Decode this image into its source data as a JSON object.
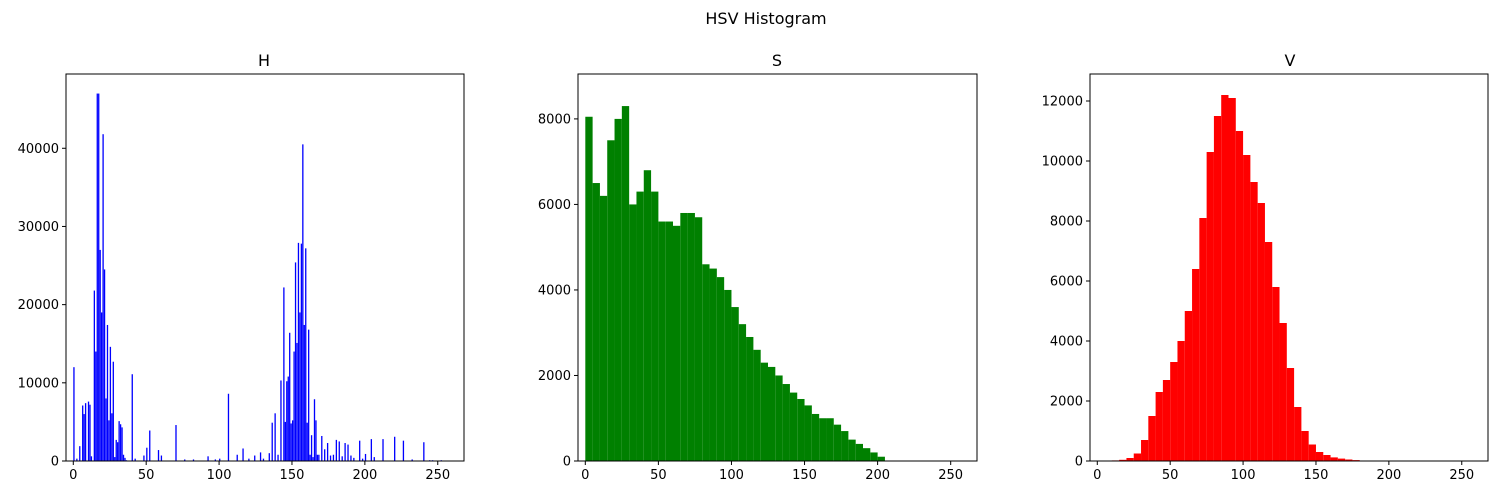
{
  "figure": {
    "suptitle": "HSV Histogram"
  },
  "chart_data": [
    {
      "type": "bar",
      "title": "H",
      "color": "#0000ff",
      "xlim": [
        -5,
        268
      ],
      "ylim": [
        0,
        49500
      ],
      "xticks": [
        0,
        50,
        100,
        150,
        200,
        250
      ],
      "yticks": [
        0,
        10000,
        20000,
        30000,
        40000
      ],
      "x": [
        0,
        2,
        4,
        6,
        7,
        8,
        10,
        11,
        12,
        14,
        15,
        16,
        17,
        18,
        19,
        20,
        21,
        22,
        23,
        24,
        25,
        26,
        27,
        28,
        29,
        30,
        31,
        32,
        33,
        34,
        35,
        36,
        40,
        42,
        48,
        50,
        52,
        58,
        60,
        70,
        76,
        82,
        92,
        97,
        100,
        106,
        112,
        116,
        120,
        124,
        128,
        130,
        134,
        136,
        138,
        140,
        142,
        144,
        145,
        146,
        147,
        148,
        149,
        150,
        151,
        152,
        153,
        154,
        155,
        156,
        157,
        158,
        159,
        160,
        161,
        162,
        163,
        164,
        165,
        166,
        167,
        168,
        170,
        172,
        174,
        176,
        178,
        180,
        182,
        184,
        186,
        188,
        190,
        192,
        196,
        198,
        200,
        204,
        206,
        212,
        220,
        226,
        232,
        240,
        244,
        246,
        252
      ],
      "values": [
        12000,
        300,
        1900,
        7100,
        6000,
        7400,
        7600,
        7200,
        600,
        21800,
        14000,
        47000,
        47000,
        27000,
        19000,
        41800,
        24500,
        8000,
        17400,
        5200,
        14600,
        6100,
        12700,
        500,
        2700,
        2400,
        5100,
        4700,
        4300,
        800,
        400,
        100,
        11100,
        300,
        700,
        1700,
        3900,
        1400,
        700,
        4600,
        200,
        200,
        600,
        200,
        300,
        8600,
        800,
        1600,
        300,
        700,
        1100,
        300,
        1000,
        4900,
        6100,
        800,
        10300,
        22200,
        5000,
        10200,
        10800,
        16400,
        4800,
        5200,
        14000,
        25400,
        15100,
        27900,
        19000,
        27800,
        40500,
        17400,
        27200,
        4900,
        16800,
        800,
        3300,
        500,
        7900,
        5200,
        800,
        800,
        3200,
        1500,
        2300,
        700,
        800,
        2700,
        2500,
        600,
        2300,
        2100,
        700,
        400,
        2600,
        300,
        900,
        2800,
        500,
        2800,
        3100,
        2600,
        200,
        2400,
        100,
        100,
        100
      ],
      "xlabel": "",
      "ylabel": ""
    },
    {
      "type": "bar",
      "title": "S",
      "color": "#008000",
      "xlim": [
        -5,
        268
      ],
      "ylim": [
        0,
        9050
      ],
      "xticks": [
        0,
        50,
        100,
        150,
        200,
        250
      ],
      "yticks": [
        0,
        2000,
        4000,
        6000,
        8000
      ],
      "x": [
        0,
        5,
        10,
        15,
        20,
        25,
        30,
        35,
        40,
        45,
        50,
        55,
        60,
        65,
        70,
        75,
        80,
        85,
        90,
        95,
        100,
        105,
        110,
        115,
        120,
        125,
        130,
        135,
        140,
        145,
        150,
        155,
        160,
        165,
        170,
        175,
        180,
        185,
        190,
        195,
        200,
        205,
        210,
        215,
        220,
        230,
        240,
        256
      ],
      "values": [
        8050,
        6500,
        6200,
        7500,
        8000,
        8300,
        6000,
        6300,
        6800,
        6300,
        5600,
        5600,
        5500,
        5800,
        5800,
        5700,
        4600,
        4500,
        4300,
        4000,
        3600,
        3200,
        2900,
        2600,
        2300,
        2200,
        2000,
        1800,
        1600,
        1450,
        1300,
        1100,
        1000,
        1000,
        850,
        700,
        500,
        400,
        300,
        200,
        100,
        0,
        0,
        0,
        0,
        0,
        0,
        0
      ],
      "xlabel": "",
      "ylabel": ""
    },
    {
      "type": "bar",
      "title": "V",
      "color": "#ff0000",
      "xlim": [
        -5,
        268
      ],
      "ylim": [
        0,
        12900
      ],
      "xticks": [
        0,
        50,
        100,
        150,
        200,
        250
      ],
      "yticks": [
        0,
        2000,
        4000,
        6000,
        8000,
        10000,
        12000
      ],
      "x": [
        0,
        10,
        15,
        20,
        25,
        30,
        35,
        40,
        45,
        50,
        55,
        60,
        65,
        70,
        75,
        80,
        85,
        90,
        95,
        100,
        105,
        110,
        115,
        120,
        125,
        130,
        135,
        140,
        145,
        150,
        155,
        160,
        165,
        170,
        175,
        180,
        190,
        200,
        220,
        250,
        256
      ],
      "values": [
        0,
        20,
        40,
        100,
        250,
        700,
        1500,
        2300,
        2700,
        3300,
        4000,
        5000,
        6400,
        8100,
        10300,
        11500,
        12200,
        12100,
        11000,
        10200,
        9300,
        8600,
        7300,
        5800,
        4600,
        3100,
        1800,
        1000,
        550,
        300,
        200,
        120,
        80,
        50,
        30,
        15,
        5,
        0,
        0,
        0,
        0
      ],
      "xlabel": "",
      "ylabel": ""
    }
  ]
}
